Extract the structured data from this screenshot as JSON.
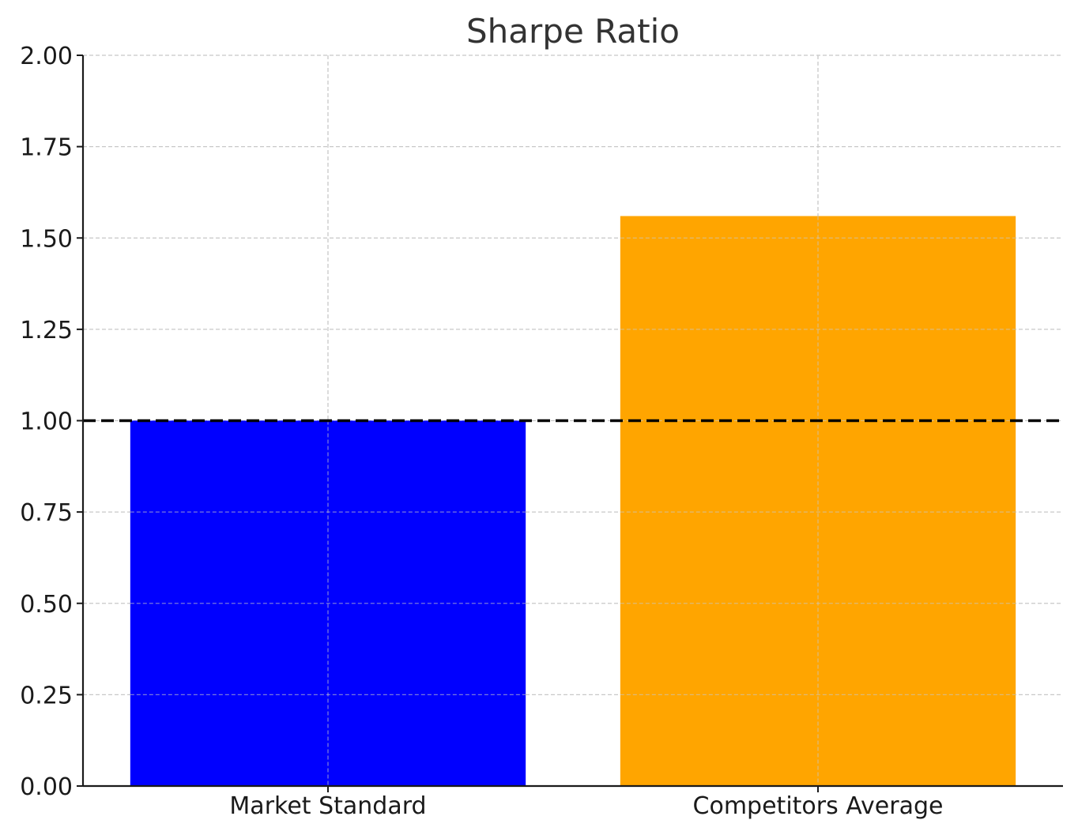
{
  "chart_data": {
    "type": "bar",
    "title": "Sharpe Ratio",
    "xlabel": "",
    "ylabel": "",
    "categories": [
      "Market Standard",
      "Competitors Average"
    ],
    "values": [
      1.0,
      1.56
    ],
    "bar_colors": [
      "#0000ff",
      "#ffa500"
    ],
    "ylim": [
      0,
      2.0
    ],
    "yticks": [
      "0.00",
      "0.25",
      "0.50",
      "0.75",
      "1.00",
      "1.25",
      "1.50",
      "1.75",
      "2.00"
    ],
    "reference_line": {
      "value": 1.0,
      "style": "dashed",
      "color": "#000000"
    },
    "grid": true,
    "grid_color": "#c8c8c8",
    "legend": false
  }
}
